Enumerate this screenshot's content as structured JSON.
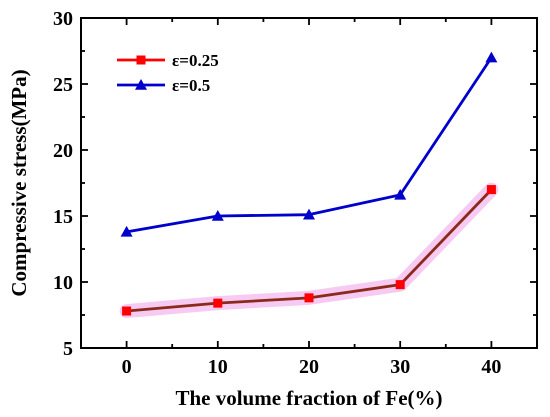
{
  "chart_data": {
    "type": "line",
    "title": "",
    "xlabel": "The volume fraction of Fe(%)",
    "ylabel": "Compressive stress(MPa)",
    "x": [
      0,
      10,
      20,
      30,
      40
    ],
    "xlim": [
      -5,
      45
    ],
    "ylim": [
      5,
      30
    ],
    "xticks": [
      0,
      10,
      20,
      30,
      40
    ],
    "yticks": [
      5,
      10,
      15,
      20,
      25,
      30
    ],
    "grid": false,
    "legend_position": "top-left",
    "series": [
      {
        "name": "ε=0.25",
        "values": [
          7.8,
          8.4,
          8.8,
          9.8,
          17.0
        ],
        "color": "#ff0000",
        "line_color": "#8b2a1a",
        "marker": "square"
      },
      {
        "name": "ε=0.5",
        "values": [
          13.8,
          15.0,
          15.1,
          16.6,
          27.0
        ],
        "color": "#0000cc",
        "line_color": "#0000cc",
        "marker": "triangle"
      }
    ]
  }
}
